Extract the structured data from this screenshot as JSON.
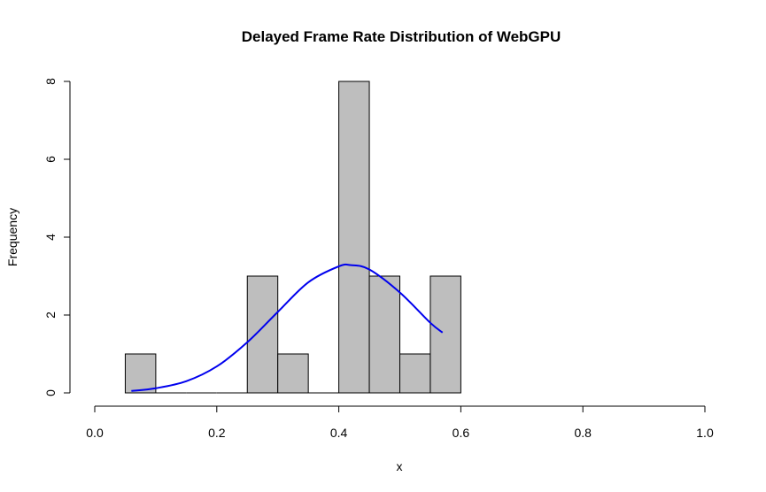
{
  "chart_data": {
    "type": "bar",
    "title": "Delayed Frame Rate Distribution of WebGPU",
    "xlabel": "x",
    "ylabel": "Frequency",
    "xlim": [
      0.0,
      1.0
    ],
    "ylim": [
      0,
      8
    ],
    "x_ticks": [
      "0.0",
      "0.2",
      "0.4",
      "0.6",
      "0.8",
      "1.0"
    ],
    "x_tick_values": [
      0.0,
      0.2,
      0.4,
      0.6,
      0.8,
      1.0
    ],
    "y_ticks": [
      "0",
      "2",
      "4",
      "6",
      "8"
    ],
    "y_tick_values": [
      0,
      2,
      4,
      6,
      8
    ],
    "bins": [
      {
        "start": 0.05,
        "end": 0.1,
        "count": 1
      },
      {
        "start": 0.1,
        "end": 0.15,
        "count": 0
      },
      {
        "start": 0.15,
        "end": 0.2,
        "count": 0
      },
      {
        "start": 0.2,
        "end": 0.25,
        "count": 0
      },
      {
        "start": 0.25,
        "end": 0.3,
        "count": 3
      },
      {
        "start": 0.3,
        "end": 0.35,
        "count": 1
      },
      {
        "start": 0.35,
        "end": 0.4,
        "count": 0
      },
      {
        "start": 0.4,
        "end": 0.45,
        "count": 8
      },
      {
        "start": 0.45,
        "end": 0.5,
        "count": 3
      },
      {
        "start": 0.5,
        "end": 0.55,
        "count": 1
      },
      {
        "start": 0.55,
        "end": 0.6,
        "count": 3
      }
    ],
    "density_curve": {
      "x": [
        0.06,
        0.1,
        0.15,
        0.2,
        0.25,
        0.3,
        0.35,
        0.4,
        0.42,
        0.45,
        0.5,
        0.55,
        0.57
      ],
      "y": [
        0.05,
        0.12,
        0.3,
        0.68,
        1.3,
        2.08,
        2.84,
        3.25,
        3.28,
        3.17,
        2.58,
        1.8,
        1.55
      ]
    },
    "grid": false,
    "colors": {
      "bar_fill": "#bebebe",
      "bar_stroke": "#000000",
      "curve": "#0000ee"
    }
  }
}
